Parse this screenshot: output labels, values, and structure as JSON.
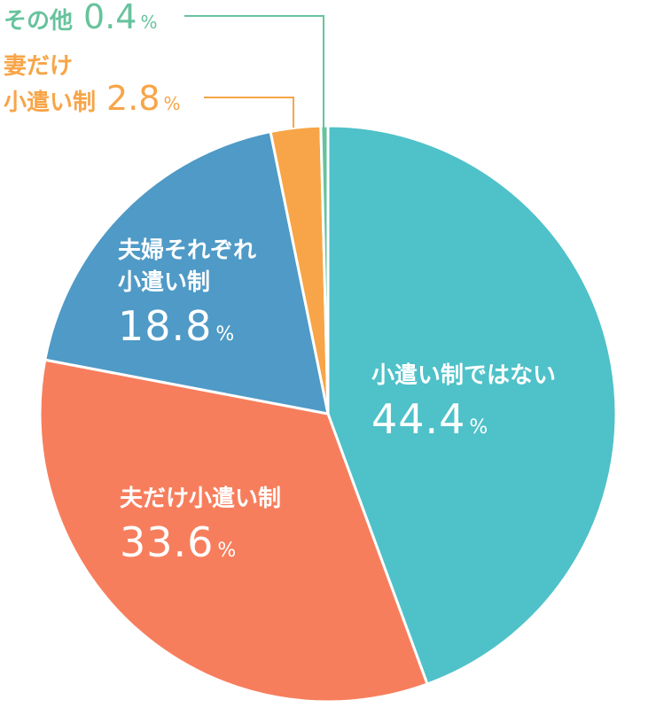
{
  "chart_data": {
    "type": "pie",
    "slices": [
      {
        "label": "小遣い制ではない",
        "value": 44.4,
        "value_text": "44.4",
        "color": "#4fc1c9"
      },
      {
        "label": "夫だけ小遣い制",
        "value": 33.6,
        "value_text": "33.6",
        "color": "#f77e5d"
      },
      {
        "label_lines": [
          "夫婦それぞれ",
          "小遣い制"
        ],
        "value": 18.8,
        "value_text": "18.8",
        "color": "#4f9ac6"
      },
      {
        "label_lines": [
          "妻だけ",
          "小遣い制"
        ],
        "value": 2.8,
        "value_text": "2.8",
        "color": "#f7a548"
      },
      {
        "label": "その他",
        "value": 0.4,
        "value_text": "0.4",
        "color": "#67c39d"
      }
    ],
    "unit": "%",
    "start": "12 o'clock",
    "direction": "clockwise",
    "legend": "none"
  }
}
